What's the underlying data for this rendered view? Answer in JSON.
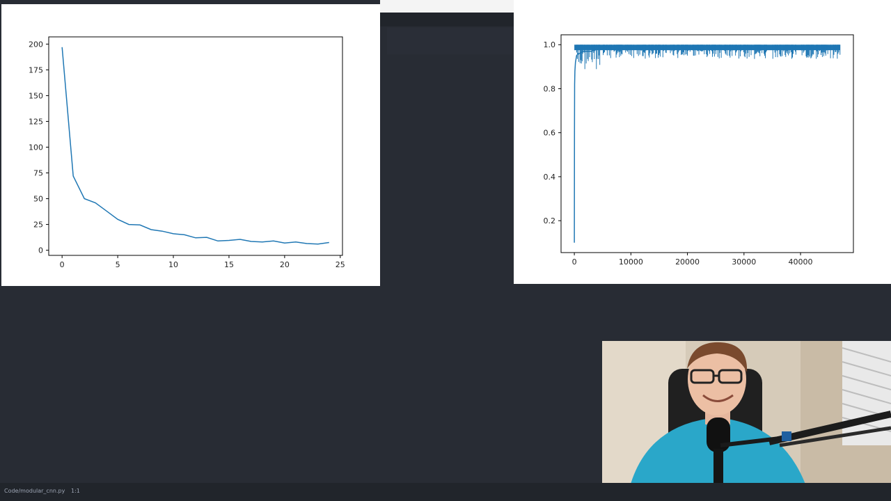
{
  "status_bar": {
    "file_path": "Code/modular_cnn.py",
    "cursor_position": "1:1"
  },
  "webcam": {
    "description_icon": "webcam-person-icon"
  },
  "chart_data": [
    {
      "type": "line",
      "x": [
        0,
        1,
        2,
        3,
        4,
        5,
        6,
        7,
        8,
        9,
        10,
        11,
        12,
        13,
        14,
        15,
        16,
        17,
        18,
        19,
        20,
        21,
        22,
        23,
        24
      ],
      "series": [
        {
          "values": [
            197,
            72,
            50,
            46,
            38,
            30,
            25,
            24.5,
            20,
            18.5,
            16,
            15,
            12,
            12.5,
            9,
            9.5,
            10.5,
            8.5,
            8,
            9,
            7,
            8,
            6.5,
            6,
            7.5
          ],
          "color": "#1f77b4"
        }
      ],
      "xlim": [
        -1.2,
        25.2
      ],
      "ylim": [
        -5,
        207
      ],
      "xticks": [
        "0",
        "5",
        "10",
        "15",
        "20",
        "25"
      ],
      "yticks": [
        "0",
        "25",
        "50",
        "75",
        "100",
        "125",
        "150",
        "175",
        "200"
      ],
      "grid": false
    },
    {
      "type": "line",
      "x": [
        0,
        20,
        50,
        100,
        200,
        400,
        700,
        1000,
        1500,
        2000,
        3000,
        4000,
        5000,
        6000,
        7000,
        8000,
        9000,
        10000,
        12000,
        14000,
        16000,
        18000,
        20000,
        22000,
        24000,
        26000,
        28000,
        30000,
        32000,
        34000,
        36000,
        38000,
        40000,
        42000,
        44000,
        46000,
        47000
      ],
      "series": [
        {
          "values": [
            0.1,
            0.6,
            0.82,
            0.88,
            0.92,
            0.95,
            0.96,
            0.96,
            0.97,
            0.97,
            0.97,
            0.98,
            0.98,
            0.98,
            0.98,
            0.98,
            0.98,
            0.98,
            0.98,
            0.99,
            0.99,
            0.99,
            0.99,
            0.99,
            0.99,
            0.99,
            0.99,
            0.99,
            0.99,
            0.99,
            0.99,
            0.99,
            0.99,
            0.99,
            0.99,
            0.99,
            0.99
          ],
          "color": "#1f77b4"
        }
      ],
      "xlim": [
        -2350,
        49350
      ],
      "ylim": [
        0.055,
        1.045
      ],
      "xticks": [
        "0",
        "10000",
        "20000",
        "30000",
        "40000"
      ],
      "yticks": [
        "0.2",
        "0.4",
        "0.6",
        "0.8",
        "1.0"
      ],
      "grid": false
    }
  ]
}
